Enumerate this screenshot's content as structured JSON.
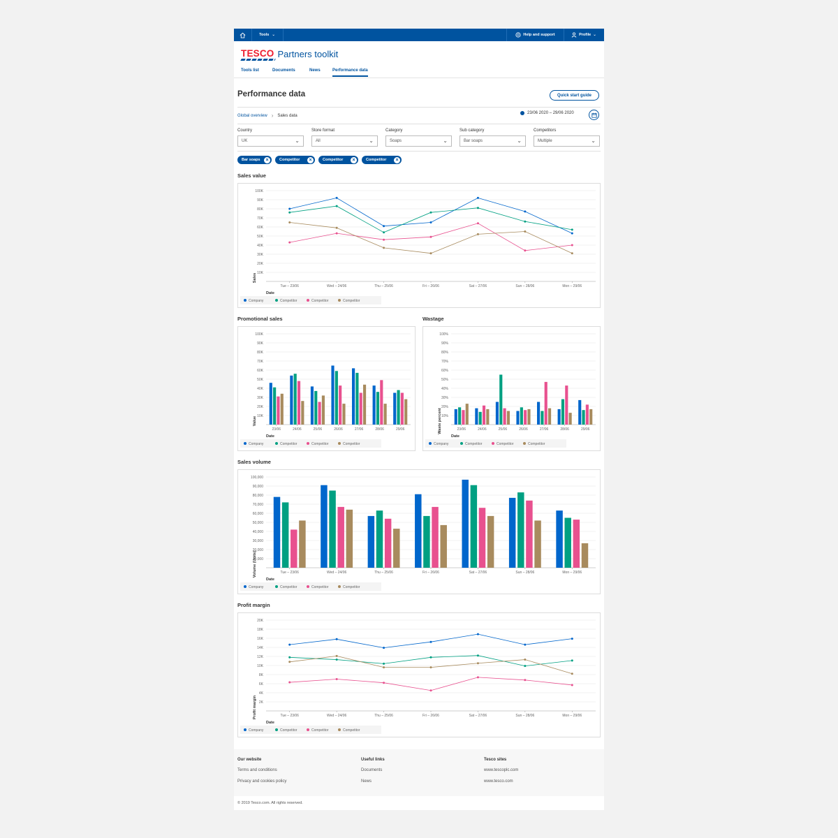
{
  "topbar": {
    "home_icon": "home-icon",
    "tools": "Tools",
    "help": "Help and support",
    "profile": "Profile"
  },
  "brand": {
    "logo": "TESCO",
    "title": "Partners toolkit"
  },
  "tabs": [
    "Tools list",
    "Documents",
    "News",
    "Performance data"
  ],
  "page": {
    "title": "Performance data",
    "quick_start": "Quick start guide"
  },
  "breadcrumb": {
    "root": "Global overview",
    "current": "Sales data"
  },
  "date_range": "23/06 2020 – 29/06 2020",
  "filters": [
    {
      "label": "Country",
      "value": "UK"
    },
    {
      "label": "Store format",
      "value": "All"
    },
    {
      "label": "Category",
      "value": "Soaps"
    },
    {
      "label": "Sub category",
      "value": "Bar soaps"
    },
    {
      "label": "Competitors",
      "value": "Multiple"
    }
  ],
  "chips": [
    "Bar soaps",
    "Competitor",
    "Competitor",
    "Competitor"
  ],
  "colors": {
    "company": "#0066cc",
    "competitor1": "#00a082",
    "competitor2": "#e8518f",
    "competitor3": "#a88b5e",
    "brand_blue": "#00539f",
    "tesco_red": "#ee1c2e"
  },
  "chart_data": [
    {
      "id": "sales_value",
      "type": "line",
      "title": "Sales value",
      "xlabel": "Date",
      "ylabel": "Sales",
      "categories": [
        "Tue – 23/06",
        "Wed – 24/06",
        "Thu – 25/06",
        "Fri – 26/06",
        "Sat – 27/06",
        "Sun – 28/06",
        "Mon – 29/06"
      ],
      "ylim": [
        0,
        100
      ],
      "yticks": [
        "10K",
        "20K",
        "30K",
        "40K",
        "50K",
        "60K",
        "70K",
        "80K",
        "90K",
        "100K"
      ],
      "series": [
        {
          "name": "Company",
          "color": "#0066cc",
          "values": [
            80,
            92,
            61,
            65,
            92,
            77,
            53
          ]
        },
        {
          "name": "Competitor",
          "color": "#00a082",
          "values": [
            76,
            83,
            54,
            76,
            81,
            66,
            57
          ]
        },
        {
          "name": "Competitor",
          "color": "#e8518f",
          "values": [
            43,
            53,
            46,
            49,
            64,
            34,
            40
          ]
        },
        {
          "name": "Competitor",
          "color": "#a88b5e",
          "values": [
            65,
            59,
            37,
            31,
            52,
            55,
            31
          ]
        }
      ]
    },
    {
      "id": "promotional_sales",
      "type": "bar",
      "title": "Promotional sales",
      "xlabel": "Date",
      "ylabel": "Value",
      "categories": [
        "23/06",
        "24/06",
        "25/06",
        "26/06",
        "27/06",
        "28/06",
        "29/06"
      ],
      "ylim": [
        0,
        100
      ],
      "yticks": [
        "10K",
        "20K",
        "30K",
        "40K",
        "50K",
        "60K",
        "70K",
        "80K",
        "90K",
        "100K"
      ],
      "series": [
        {
          "name": "Company",
          "color": "#0066cc",
          "values": [
            46,
            54,
            42,
            65,
            62,
            43,
            35
          ]
        },
        {
          "name": "Competitor",
          "color": "#00a082",
          "values": [
            41,
            56,
            37,
            59,
            57,
            36,
            38
          ]
        },
        {
          "name": "Competitor",
          "color": "#e8518f",
          "values": [
            31,
            48,
            25,
            43,
            35,
            49,
            35
          ]
        },
        {
          "name": "Competitor",
          "color": "#a88b5e",
          "values": [
            34,
            26,
            32,
            23,
            44,
            23,
            28
          ]
        }
      ]
    },
    {
      "id": "wastage",
      "type": "bar",
      "title": "Wastage",
      "xlabel": "Date",
      "ylabel": "Waste percent",
      "categories": [
        "23/06",
        "24/06",
        "25/06",
        "26/06",
        "27/06",
        "28/06",
        "29/06"
      ],
      "ylim": [
        0,
        100
      ],
      "yticks": [
        "10%",
        "20%",
        "30%",
        "40%",
        "50%",
        "60%",
        "70%",
        "80%",
        "90%",
        "100%"
      ],
      "series": [
        {
          "name": "Company",
          "color": "#0066cc",
          "values": [
            17,
            18,
            25,
            15,
            25,
            17,
            27
          ]
        },
        {
          "name": "Competitor",
          "color": "#00a082",
          "values": [
            19,
            14,
            55,
            19,
            15,
            28,
            16
          ]
        },
        {
          "name": "Competitor",
          "color": "#e8518f",
          "values": [
            16,
            21,
            18,
            16,
            47,
            43,
            22
          ]
        },
        {
          "name": "Competitor",
          "color": "#a88b5e",
          "values": [
            23,
            17,
            15,
            17,
            18,
            13,
            17
          ]
        }
      ]
    },
    {
      "id": "sales_volume",
      "type": "bar",
      "title": "Sales volume",
      "xlabel": "Date",
      "ylabel": "Volume (Units)",
      "categories": [
        "Tue – 23/06",
        "Wed – 24/06",
        "Thu – 25/06",
        "Fri – 26/06",
        "Sat – 27/06",
        "Sun – 28/06",
        "Mon – 29/06"
      ],
      "ylim": [
        0,
        100000
      ],
      "yticks": [
        "10,000",
        "20,000",
        "30,000",
        "40,000",
        "50,000",
        "60,000",
        "70,000",
        "80,000",
        "90,000",
        "100,000"
      ],
      "series": [
        {
          "name": "Company",
          "color": "#0066cc",
          "values": [
            78000,
            91000,
            57000,
            81000,
            97000,
            77000,
            63000
          ]
        },
        {
          "name": "Competitor",
          "color": "#00a082",
          "values": [
            72000,
            85000,
            63000,
            57000,
            91000,
            83000,
            55000
          ]
        },
        {
          "name": "Competitor",
          "color": "#e8518f",
          "values": [
            42000,
            67000,
            54000,
            67000,
            66000,
            74000,
            53000
          ]
        },
        {
          "name": "Competitor",
          "color": "#a88b5e",
          "values": [
            52000,
            64000,
            43000,
            47000,
            57000,
            52000,
            27000
          ]
        }
      ]
    },
    {
      "id": "profit_margin",
      "type": "line",
      "title": "Profit margin",
      "xlabel": "Date",
      "ylabel": "Profit margin",
      "categories": [
        "Tue – 23/06",
        "Wed – 24/06",
        "Thu – 25/06",
        "Fri – 26/06",
        "Sat – 27/06",
        "Sun – 28/06",
        "Mon – 29/06"
      ],
      "ylim": [
        0,
        20
      ],
      "yticks": [
        "2K",
        "4K",
        "6K",
        "8K",
        "10K",
        "12K",
        "14K",
        "16K",
        "18K",
        "20K"
      ],
      "series": [
        {
          "name": "Company",
          "color": "#0066cc",
          "values": [
            14.6,
            15.8,
            13.9,
            15.2,
            16.9,
            14.6,
            15.9
          ]
        },
        {
          "name": "Competitor",
          "color": "#00a082",
          "values": [
            11.8,
            11.3,
            10.4,
            11.8,
            12.2,
            9.9,
            11.1
          ]
        },
        {
          "name": "Competitor",
          "color": "#e8518f",
          "values": [
            6.3,
            7.0,
            6.2,
            4.5,
            7.4,
            6.8,
            5.7
          ]
        },
        {
          "name": "Competitor",
          "color": "#a88b5e",
          "values": [
            10.8,
            12.1,
            9.6,
            9.6,
            10.5,
            11.3,
            8.2
          ]
        }
      ]
    }
  ],
  "footer": {
    "columns": [
      {
        "title": "Our website",
        "links": [
          "Terms and conditions",
          "Privacy and cookies policy"
        ]
      },
      {
        "title": "Useful links",
        "links": [
          "Documents",
          "News"
        ]
      },
      {
        "title": "Tesco sites",
        "links": [
          "www.tescoplc.com",
          "www.tesco.com"
        ]
      }
    ],
    "copyright": "© 2019 Tesco.com. All rights reserved."
  }
}
